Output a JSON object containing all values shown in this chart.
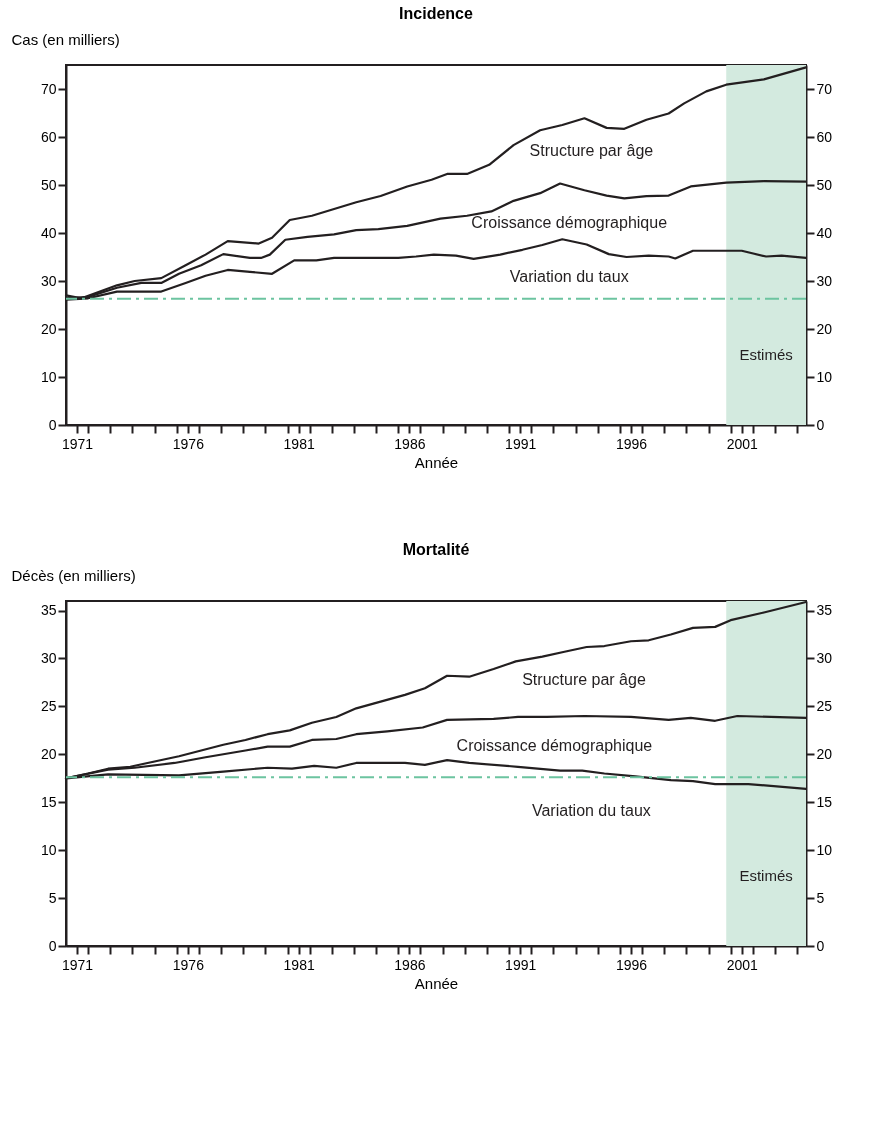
{
  "chart_data": [
    {
      "type": "line",
      "title": "Incidence",
      "xlabel": "Année",
      "ylabel": "Cas (en milliers)",
      "xlim": [
        1971,
        2004.4
      ],
      "ylim": [
        0,
        75
      ],
      "y2lim": [
        0,
        75
      ],
      "xticks": [
        {
          "value": 1971.5,
          "label": "1971"
        },
        {
          "value": 1972,
          "label": null
        },
        {
          "value": 1973,
          "label": null
        },
        {
          "value": 1974,
          "label": null
        },
        {
          "value": 1975,
          "label": null
        },
        {
          "value": 1976,
          "label": null
        },
        {
          "value": 1976.5,
          "label": "1976"
        },
        {
          "value": 1977,
          "label": null
        },
        {
          "value": 1978,
          "label": null
        },
        {
          "value": 1979,
          "label": null
        },
        {
          "value": 1980,
          "label": null
        },
        {
          "value": 1981,
          "label": null
        },
        {
          "value": 1981.5,
          "label": "1981"
        },
        {
          "value": 1982,
          "label": null
        },
        {
          "value": 1983,
          "label": null
        },
        {
          "value": 1984,
          "label": null
        },
        {
          "value": 1985,
          "label": null
        },
        {
          "value": 1986,
          "label": null
        },
        {
          "value": 1986.5,
          "label": "1986"
        },
        {
          "value": 1987,
          "label": null
        },
        {
          "value": 1988,
          "label": null
        },
        {
          "value": 1989,
          "label": null
        },
        {
          "value": 1990,
          "label": null
        },
        {
          "value": 1991,
          "label": null
        },
        {
          "value": 1991.5,
          "label": "1991"
        },
        {
          "value": 1992,
          "label": null
        },
        {
          "value": 1993,
          "label": null
        },
        {
          "value": 1994,
          "label": null
        },
        {
          "value": 1995,
          "label": null
        },
        {
          "value": 1996,
          "label": null
        },
        {
          "value": 1996.5,
          "label": "1996"
        },
        {
          "value": 1997,
          "label": null
        },
        {
          "value": 1998,
          "label": null
        },
        {
          "value": 1999,
          "label": null
        },
        {
          "value": 2000,
          "label": null
        },
        {
          "value": 2001,
          "label": null
        },
        {
          "value": 2001.5,
          "label": "2001"
        },
        {
          "value": 2002,
          "label": null
        },
        {
          "value": 2003,
          "label": null
        },
        {
          "value": 2004,
          "label": null
        }
      ],
      "yticks": [
        0,
        10,
        20,
        30,
        40,
        50,
        60,
        70
      ],
      "y2ticks": [
        0,
        10,
        20,
        30,
        40,
        50,
        60,
        70
      ],
      "grid": false,
      "legend": false,
      "line_style": "solid",
      "marker": "none",
      "series": [
        {
          "color": "#231f20",
          "x": [
            1971.0,
            1971.7,
            1973.3,
            1974.1,
            1975.3,
            1976.4,
            1977.3,
            1978.3,
            1979.7,
            1980.3,
            1981.1,
            1982.1,
            1984.1,
            1985.2,
            1986.4,
            1987.5,
            1988.2,
            1989.1,
            1990.1,
            1991.2,
            1992.4,
            1993.4,
            1994.4,
            1995.4,
            1996.2,
            1997.2,
            1998.2,
            1998.9,
            1999.9,
            2000.8,
            2002.5,
            2004.4
          ],
          "values": [
            27.0,
            26.4,
            29.1,
            30.0,
            30.6,
            33.3,
            35.5,
            38.3,
            37.8,
            39.0,
            42.7,
            43.6,
            46.4,
            47.7,
            49.7,
            51.1,
            52.3,
            52.3,
            54.2,
            58.3,
            61.4,
            62.5,
            63.9,
            61.9,
            61.7,
            63.6,
            64.9,
            67.0,
            69.5,
            70.9,
            72.0,
            74.5
          ]
        },
        {
          "color": "#231f20",
          "x": [
            1971.0,
            1972.0,
            1973.3,
            1974.4,
            1975.3,
            1976.1,
            1977.1,
            1978.1,
            1979.3,
            1979.8,
            1980.2,
            1980.9,
            1981.9,
            1983.1,
            1984.1,
            1985.1,
            1986.4,
            1987.9,
            1989.1,
            1990.2,
            1991.2,
            1992.4,
            1993.3,
            1994.4,
            1995.4,
            1996.2,
            1997.2,
            1998.2,
            1999.2,
            2000.8,
            2002.5,
            2004.4
          ],
          "values": [
            26.4,
            26.7,
            28.6,
            29.6,
            29.6,
            31.5,
            33.3,
            35.6,
            34.8,
            34.8,
            35.5,
            38.6,
            39.2,
            39.7,
            40.6,
            40.8,
            41.5,
            43.0,
            43.6,
            44.5,
            46.7,
            48.3,
            50.3,
            48.9,
            47.8,
            47.2,
            47.7,
            47.8,
            49.7,
            50.5,
            50.8,
            50.7
          ]
        },
        {
          "color": "#231f20",
          "x": [
            1971.0,
            1972.0,
            1973.3,
            1975.3,
            1976.4,
            1977.3,
            1978.3,
            1979.3,
            1980.3,
            1981.3,
            1982.3,
            1983.1,
            1986.0,
            1986.8,
            1987.6,
            1988.6,
            1989.4,
            1990.6,
            1991.6,
            1992.5,
            1993.4,
            1994.5,
            1995.5,
            1996.3,
            1997.3,
            1998.2,
            1998.5,
            1999.3,
            2001.5,
            2002.6,
            2003.3,
            2004.4
          ],
          "values": [
            26.1,
            26.4,
            27.8,
            27.8,
            29.6,
            31.1,
            32.3,
            31.9,
            31.5,
            34.3,
            34.3,
            34.8,
            34.8,
            35.1,
            35.5,
            35.3,
            34.6,
            35.5,
            36.5,
            37.5,
            38.7,
            37.6,
            35.6,
            35.0,
            35.3,
            35.1,
            34.7,
            36.3,
            36.3,
            35.1,
            35.3,
            34.8
          ]
        }
      ],
      "ref_lines": [
        {
          "axis": "y",
          "value": 26.3,
          "color": "#6cc4a0",
          "line_style": "dashed"
        }
      ],
      "bands": [
        {
          "axis": "x",
          "from": 2000.8,
          "to": 2004.4,
          "label": "Estimés",
          "color": "#d3eadf"
        }
      ],
      "annotations": [
        "Structure par âge",
        "Croissance démographique",
        "Variation du taux"
      ]
    },
    {
      "type": "line",
      "title": "Mortalité",
      "xlabel": "Année",
      "ylabel": "Décès (en milliers)",
      "xlim": [
        1971,
        2004.4
      ],
      "ylim": [
        0,
        36
      ],
      "y2lim": [
        0,
        36
      ],
      "xticks": [
        {
          "value": 1971.5,
          "label": "1971"
        },
        {
          "value": 1972,
          "label": null
        },
        {
          "value": 1973,
          "label": null
        },
        {
          "value": 1974,
          "label": null
        },
        {
          "value": 1975,
          "label": null
        },
        {
          "value": 1976,
          "label": null
        },
        {
          "value": 1976.5,
          "label": "1976"
        },
        {
          "value": 1977,
          "label": null
        },
        {
          "value": 1978,
          "label": null
        },
        {
          "value": 1979,
          "label": null
        },
        {
          "value": 1980,
          "label": null
        },
        {
          "value": 1981,
          "label": null
        },
        {
          "value": 1981.5,
          "label": "1981"
        },
        {
          "value": 1982,
          "label": null
        },
        {
          "value": 1983,
          "label": null
        },
        {
          "value": 1984,
          "label": null
        },
        {
          "value": 1985,
          "label": null
        },
        {
          "value": 1986,
          "label": null
        },
        {
          "value": 1986.5,
          "label": "1986"
        },
        {
          "value": 1987,
          "label": null
        },
        {
          "value": 1988,
          "label": null
        },
        {
          "value": 1989,
          "label": null
        },
        {
          "value": 1990,
          "label": null
        },
        {
          "value": 1991,
          "label": null
        },
        {
          "value": 1991.5,
          "label": "1991"
        },
        {
          "value": 1992,
          "label": null
        },
        {
          "value": 1993,
          "label": null
        },
        {
          "value": 1994,
          "label": null
        },
        {
          "value": 1995,
          "label": null
        },
        {
          "value": 1996,
          "label": null
        },
        {
          "value": 1996.5,
          "label": "1996"
        },
        {
          "value": 1997,
          "label": null
        },
        {
          "value": 1998,
          "label": null
        },
        {
          "value": 1999,
          "label": null
        },
        {
          "value": 2000,
          "label": null
        },
        {
          "value": 2001,
          "label": null
        },
        {
          "value": 2001.5,
          "label": "2001"
        },
        {
          "value": 2002,
          "label": null
        },
        {
          "value": 2003,
          "label": null
        },
        {
          "value": 2004,
          "label": null
        }
      ],
      "yticks": [
        0,
        5,
        10,
        15,
        20,
        25,
        30,
        35
      ],
      "y2ticks": [
        0,
        5,
        10,
        15,
        20,
        25,
        30,
        35
      ],
      "grid": false,
      "legend": false,
      "line_style": "solid",
      "marker": "none",
      "series": [
        {
          "color": "#231f20",
          "x": [
            1971.0,
            1972.0,
            1972.9,
            1973.9,
            1975.1,
            1976.1,
            1977.1,
            1978.1,
            1979.1,
            1980.1,
            1981.1,
            1982.1,
            1983.2,
            1984.1,
            1985.2,
            1986.3,
            1987.2,
            1988.2,
            1989.2,
            1990.3,
            1991.3,
            1992.5,
            1993.5,
            1994.5,
            1995.3,
            1996.5,
            1997.3,
            1998.3,
            1999.3,
            2000.3,
            2001.0,
            2002.5,
            2004.4
          ],
          "values": [
            17.5,
            18.0,
            18.5,
            18.7,
            19.3,
            19.8,
            20.4,
            21.0,
            21.5,
            22.1,
            22.5,
            23.3,
            23.9,
            24.8,
            25.5,
            26.2,
            26.9,
            28.2,
            28.1,
            28.9,
            29.7,
            30.2,
            30.7,
            31.2,
            31.3,
            31.8,
            31.9,
            32.5,
            33.2,
            33.3,
            34.0,
            34.8,
            35.9
          ]
        },
        {
          "color": "#231f20",
          "x": [
            1971.0,
            1972.9,
            1974.1,
            1975.9,
            1977.3,
            1979.1,
            1980.1,
            1981.1,
            1982.1,
            1983.2,
            1984.1,
            1985.5,
            1987.1,
            1988.2,
            1990.3,
            1991.4,
            1992.7,
            1994.4,
            1996.5,
            1998.2,
            1999.2,
            2000.3,
            2001.3,
            2004.4
          ],
          "values": [
            17.5,
            18.4,
            18.6,
            19.1,
            19.7,
            20.4,
            20.8,
            20.8,
            21.5,
            21.6,
            22.1,
            22.4,
            22.8,
            23.6,
            23.7,
            23.9,
            23.9,
            24.0,
            23.9,
            23.6,
            23.8,
            23.5,
            24.0,
            23.8
          ]
        },
        {
          "color": "#231f20",
          "x": [
            1971.0,
            1972.9,
            1976.1,
            1978.1,
            1980.1,
            1981.2,
            1982.2,
            1983.2,
            1984.1,
            1986.3,
            1987.2,
            1988.2,
            1989.2,
            1991.4,
            1993.3,
            1994.3,
            1995.3,
            1996.7,
            1998.3,
            1999.3,
            2000.3,
            2001.8,
            2004.4
          ],
          "values": [
            17.5,
            17.9,
            17.8,
            18.2,
            18.6,
            18.5,
            18.8,
            18.6,
            19.1,
            19.1,
            18.9,
            19.4,
            19.1,
            18.7,
            18.3,
            18.3,
            18.0,
            17.7,
            17.3,
            17.2,
            16.9,
            16.9,
            16.4
          ]
        }
      ],
      "ref_lines": [
        {
          "axis": "y",
          "value": 17.6,
          "color": "#6cc4a0",
          "line_style": "dashed"
        }
      ],
      "bands": [
        {
          "axis": "x",
          "from": 2000.8,
          "to": 2004.4,
          "label": "Estimés",
          "color": "#d3eadf"
        }
      ],
      "annotations": [
        "Structure par âge",
        "Croissance démographique",
        "Variation du taux"
      ]
    }
  ]
}
